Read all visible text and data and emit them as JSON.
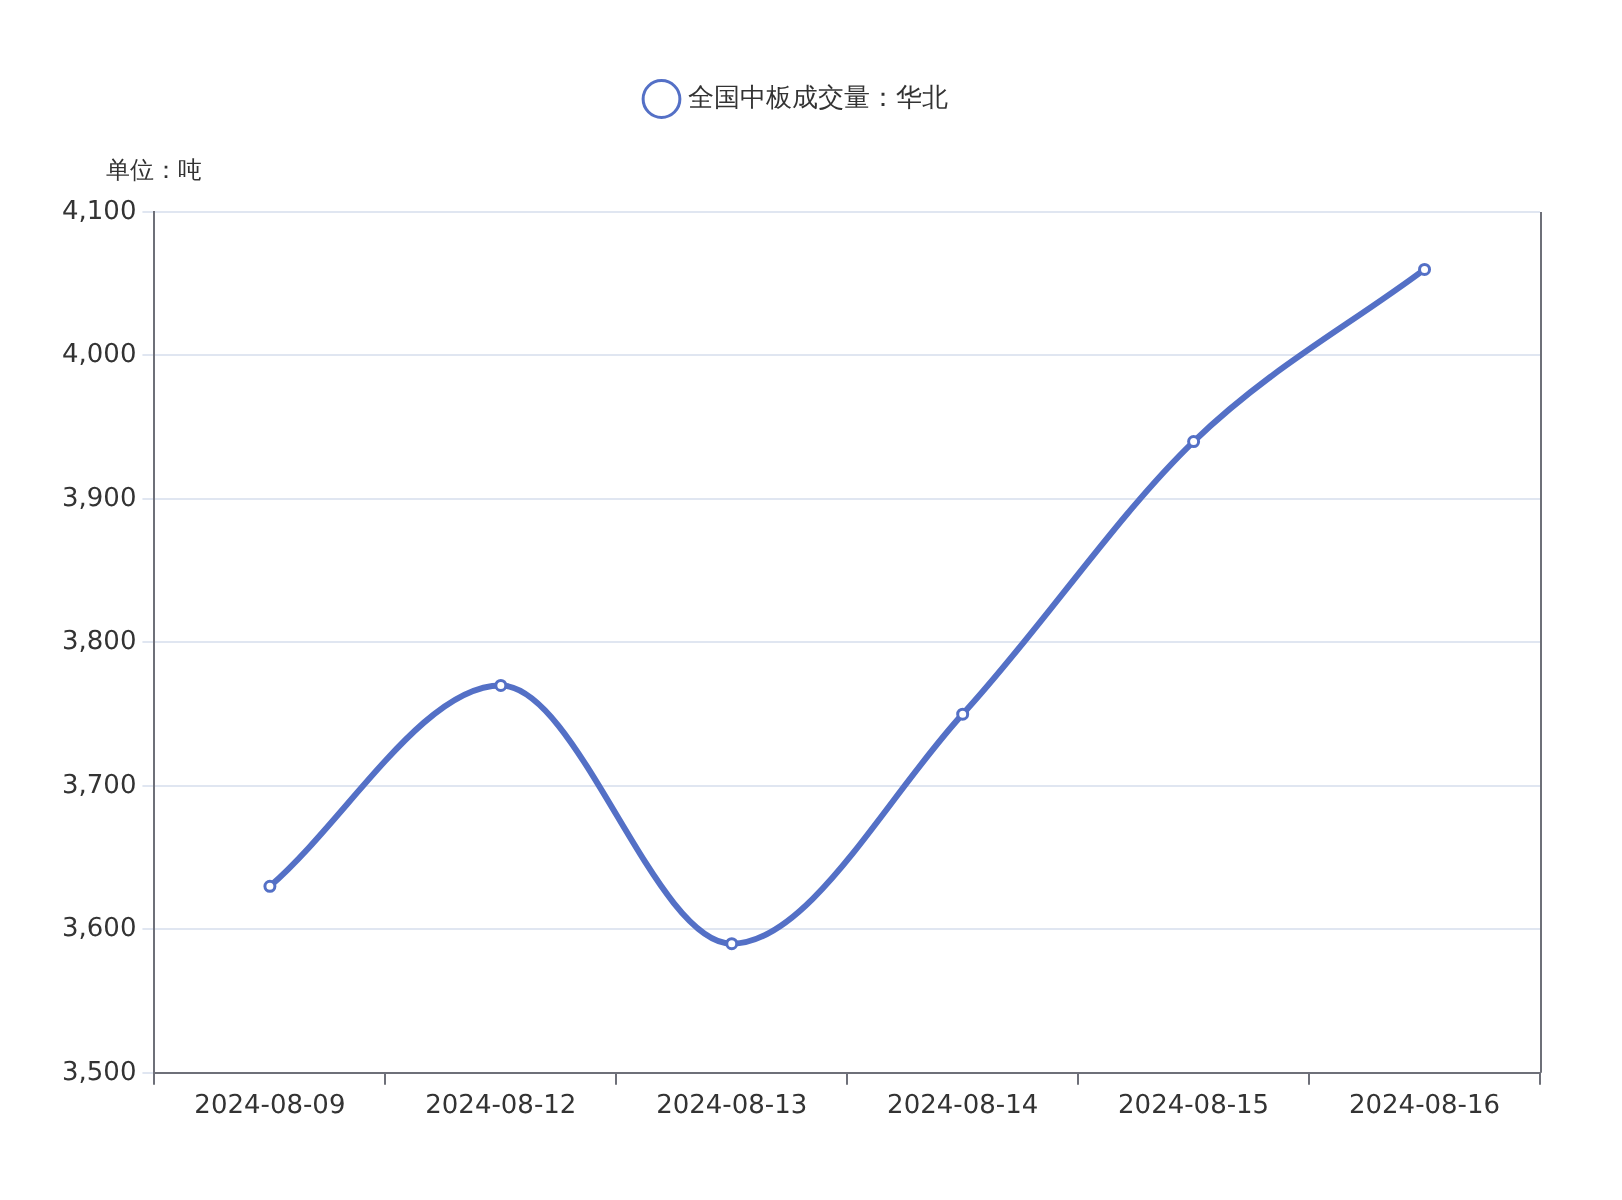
{
  "chart_data": {
    "type": "line",
    "ylabel": "单位：吨",
    "categories": [
      "2024-08-09",
      "2024-08-12",
      "2024-08-13",
      "2024-08-14",
      "2024-08-15",
      "2024-08-16"
    ],
    "series": [
      {
        "name": "全国中板成交量：华北",
        "color": "#5470c6",
        "values": [
          3630,
          3770,
          3590,
          3750,
          3940,
          4060
        ]
      }
    ],
    "ylim": [
      3500,
      4100
    ],
    "yticks": [
      {
        "value": 3500,
        "label": "3,500"
      },
      {
        "value": 3600,
        "label": "3,600"
      },
      {
        "value": 3700,
        "label": "3,700"
      },
      {
        "value": 3800,
        "label": "3,800"
      },
      {
        "value": 3900,
        "label": "3,900"
      },
      {
        "value": 4000,
        "label": "4,000"
      },
      {
        "value": 4100,
        "label": "4,100"
      }
    ],
    "grid": "y",
    "legend": "top",
    "marker": "circle",
    "line_style": "solid"
  }
}
